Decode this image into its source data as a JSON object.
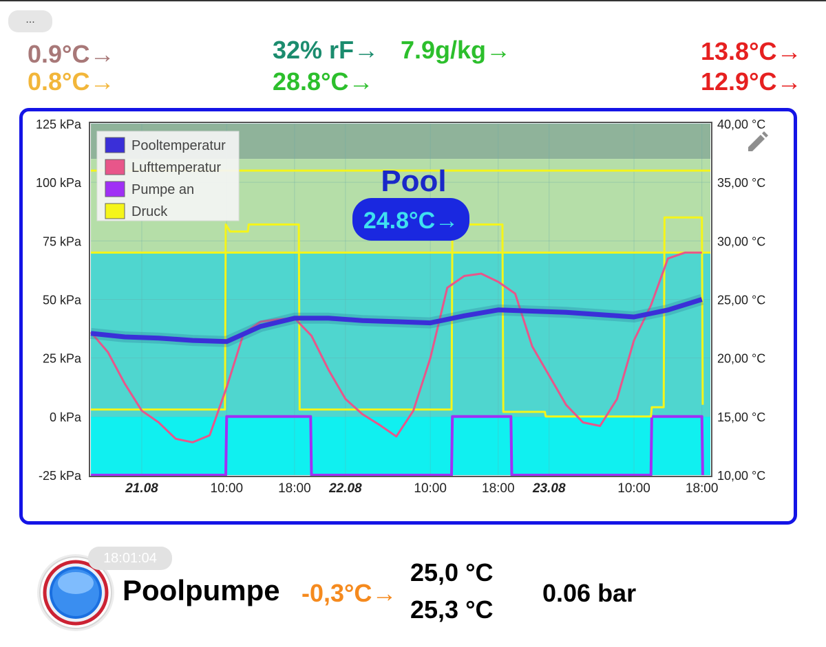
{
  "menu": {
    "label": "..."
  },
  "header": {
    "left_top": {
      "text": "0.9°C→",
      "color": "#a87878"
    },
    "left_bot": {
      "text": "0.8°C→",
      "color": "#f2b63a"
    },
    "mid_hum": {
      "text": "32% rF→",
      "color": "#1b8c6e"
    },
    "mid_abs": {
      "text": "7.9g/kg→",
      "color": "#2cbf2c"
    },
    "mid_temp": {
      "text": "28.8°C→",
      "color": "#2cbf2c"
    },
    "right_top": {
      "text": "13.8°C→",
      "color": "#e62020"
    },
    "right_bot": {
      "text": "12.9°C→",
      "color": "#e62020"
    }
  },
  "card": {
    "title": "Pool",
    "badge": "24.8°C→",
    "edit_icon": "pencil-icon"
  },
  "chart_data": {
    "type": "line",
    "title": "Pool",
    "y_left": {
      "ylim": [
        -25,
        125
      ],
      "ticks": [
        "125 kPa",
        "100 kPa",
        "75 kPa",
        "50 kPa",
        "25 kPa",
        "0 kPa",
        "-25 kPa"
      ]
    },
    "y_right": {
      "ylim": [
        10,
        40
      ],
      "ticks": [
        "40,00 °C",
        "35,00 °C",
        "30,00 °C",
        "25,00 °C",
        "20,00 °C",
        "15,00 °C",
        "10,00 °C"
      ]
    },
    "x_range_hours": [
      0,
      54
    ],
    "x_ticks": [
      {
        "h": 6,
        "label": "21.08",
        "bold": true
      },
      {
        "h": 16,
        "label": "10:00",
        "bold": false
      },
      {
        "h": 24,
        "label": "18:00",
        "bold": false
      },
      {
        "h": 30,
        "label": "22.08",
        "bold": true
      },
      {
        "h": 40,
        "label": "10:00",
        "bold": false
      },
      {
        "h": 48,
        "label": "18:00",
        "bold": false
      },
      {
        "h": 54,
        "label": "23.08",
        "bold": true
      },
      {
        "h": 64,
        "label": "10:00",
        "bold": false
      },
      {
        "h": 72,
        "label": "18:00",
        "bold": false
      }
    ],
    "x_axis_hours": [
      0,
      73
    ],
    "bands": [
      {
        "from": 37,
        "to": 40,
        "color": "#8fb39a"
      },
      {
        "from": 29,
        "to": 37,
        "color": "#b5dea8"
      },
      {
        "from": 15,
        "to": 29,
        "color": "#4fd6cf"
      },
      {
        "from": 10,
        "to": 15,
        "color": "#10f0f0"
      }
    ],
    "threshold_lines_c": [
      36.0,
      29.0
    ],
    "legend": [
      "Pooltemperatur",
      "Lufttemperatur",
      "Pumpe an",
      "Druck"
    ],
    "legend_position": "top-left",
    "series": [
      {
        "name": "Pooltemperatur",
        "axis": "right",
        "color": "#3a2fd8",
        "x": [
          0,
          4,
          8,
          12,
          16,
          20,
          24,
          28,
          32,
          36,
          40,
          44,
          48,
          52,
          56,
          60,
          64,
          68,
          72
        ],
        "y": [
          22.1,
          21.8,
          21.7,
          21.5,
          21.4,
          22.7,
          23.4,
          23.4,
          23.2,
          23.1,
          23.0,
          23.6,
          24.1,
          24.0,
          23.9,
          23.7,
          23.5,
          24.1,
          25.0
        ]
      },
      {
        "name": "Lufttemperatur",
        "axis": "right",
        "color": "#e8568a",
        "x": [
          0,
          2,
          4,
          6,
          8,
          10,
          12,
          14,
          16,
          18,
          20,
          22,
          24,
          26,
          28,
          30,
          32,
          34,
          36,
          38,
          40,
          42,
          44,
          46,
          48,
          50,
          52,
          54,
          56,
          58,
          60,
          62,
          64,
          66,
          68,
          70,
          72
        ],
        "y": [
          22.2,
          20.5,
          17.8,
          15.5,
          14.5,
          13.1,
          12.8,
          13.4,
          17.5,
          22.1,
          23.1,
          23.3,
          23.4,
          21.9,
          19.0,
          16.5,
          15.2,
          14.3,
          13.3,
          15.5,
          20.0,
          26.0,
          27.0,
          27.2,
          26.5,
          25.5,
          21.0,
          18.5,
          16.0,
          14.5,
          14.2,
          16.5,
          21.5,
          24.5,
          28.5,
          29.0,
          29.0
        ]
      },
      {
        "name": "Pumpe an",
        "axis": "left",
        "color": "#a030f5",
        "x": [
          0,
          15.9,
          16,
          25.9,
          26,
          42.5,
          42.6,
          49.5,
          49.6,
          66,
          66.1,
          72,
          72.1
        ],
        "y": [
          -25,
          -25,
          0,
          0,
          -25,
          -25,
          0,
          0,
          -25,
          -25,
          0,
          0,
          -25
        ]
      },
      {
        "name": "Druck",
        "axis": "left",
        "color": "#f5f51a",
        "x": [
          0,
          15.8,
          15.9,
          16.4,
          18.5,
          18.6,
          24.5,
          24.6,
          42.5,
          42.6,
          43.5,
          48.5,
          48.6,
          53.5,
          53.6,
          54,
          66,
          66.1,
          67.5,
          67.6,
          72,
          72.1
        ],
        "y": [
          3,
          3,
          82,
          79,
          79,
          82,
          82,
          3,
          3,
          80,
          82,
          82,
          2,
          2,
          0,
          0,
          0,
          4,
          4,
          85,
          85,
          5
        ]
      }
    ]
  },
  "footer": {
    "timestamp": "18:01:04",
    "device_name": "Poolpumpe",
    "delta": {
      "text": "-0,3°C→",
      "color": "#f58a1e"
    },
    "temp_top": "25,0 °C",
    "temp_bot": "25,3 °C",
    "pressure": "0.06 bar",
    "pump_icon": "power-button-icon"
  }
}
